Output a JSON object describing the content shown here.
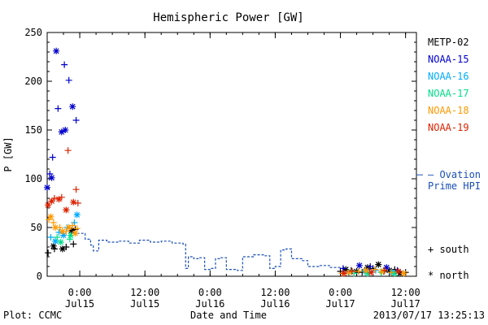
{
  "chart_data": {
    "type": "scatter",
    "title": "Hemispheric Power [GW]",
    "ylabel": "P [GW]",
    "xlabel": "Date and Time",
    "ylim": [
      0,
      250
    ],
    "xlim": [
      "2013-07-14T18:00",
      "2013-07-17T14:00"
    ],
    "y_ticks": [
      "0",
      "50",
      "100",
      "150",
      "200",
      "250"
    ],
    "x_ticks": [
      {
        "top": "0:00",
        "bottom": "Jul15",
        "t": "2013-07-15T00:00"
      },
      {
        "top": "12:00",
        "bottom": "Jul15",
        "t": "2013-07-15T12:00"
      },
      {
        "top": "0:00",
        "bottom": "Jul16",
        "t": "2013-07-16T00:00"
      },
      {
        "top": "12:00",
        "bottom": "Jul16",
        "t": "2013-07-16T12:00"
      },
      {
        "top": "0:00",
        "bottom": "Jul17",
        "t": "2013-07-17T00:00"
      },
      {
        "top": "12:00",
        "bottom": "Jul17",
        "t": "2013-07-17T12:00"
      }
    ],
    "series": [
      {
        "name": "METP-02",
        "color": "#000000",
        "south": [
          [
            "2013-07-14T18:10",
            24
          ],
          [
            "2013-07-14T19:20",
            28
          ],
          [
            "2013-07-14T21:30",
            30
          ],
          [
            "2013-07-14T22:50",
            33
          ],
          [
            "2013-07-14T23:10",
            48
          ],
          [
            "2013-07-17T00:00",
            5
          ],
          [
            "2013-07-17T02:00",
            6
          ],
          [
            "2013-07-17T04:00",
            4
          ],
          [
            "2013-07-17T06:00",
            8
          ],
          [
            "2013-07-17T08:00",
            5
          ],
          [
            "2013-07-17T10:00",
            7
          ],
          [
            "2013-07-17T12:00",
            4
          ]
        ],
        "north": [
          [
            "2013-07-14T19:10",
            31
          ],
          [
            "2013-07-14T20:50",
            28
          ],
          [
            "2013-07-14T22:30",
            47
          ],
          [
            "2013-07-17T01:00",
            7
          ],
          [
            "2013-07-17T03:00",
            5
          ],
          [
            "2013-07-17T05:00",
            9
          ],
          [
            "2013-07-17T07:00",
            12
          ],
          [
            "2013-07-17T09:00",
            6
          ],
          [
            "2013-07-17T11:00",
            3
          ]
        ]
      },
      {
        "name": "NOAA-15",
        "color": "#0000cc",
        "south": [
          [
            "2013-07-14T18:30",
            105
          ],
          [
            "2013-07-14T19:00",
            122
          ],
          [
            "2013-07-14T20:00",
            172
          ],
          [
            "2013-07-14T21:10",
            217
          ],
          [
            "2013-07-14T22:00",
            201
          ],
          [
            "2013-07-14T23:20",
            160
          ],
          [
            "2013-07-17T00:30",
            8
          ],
          [
            "2013-07-17T05:30",
            10
          ],
          [
            "2013-07-17T10:30",
            6
          ]
        ],
        "north": [
          [
            "2013-07-14T18:00",
            91
          ],
          [
            "2013-07-14T18:50",
            101
          ],
          [
            "2013-07-14T19:40",
            231
          ],
          [
            "2013-07-14T20:40",
            148
          ],
          [
            "2013-07-14T21:20",
            150
          ],
          [
            "2013-07-14T22:40",
            174
          ],
          [
            "2013-07-17T03:30",
            11
          ],
          [
            "2013-07-17T08:30",
            9
          ]
        ]
      },
      {
        "name": "NOAA-16",
        "color": "#00aaff",
        "south": [
          [
            "2013-07-14T18:40",
            40
          ],
          [
            "2013-07-14T20:10",
            45
          ],
          [
            "2013-07-14T21:40",
            50
          ],
          [
            "2013-07-14T23:00",
            55
          ],
          [
            "2013-07-17T01:30",
            4
          ],
          [
            "2013-07-17T06:30",
            6
          ]
        ],
        "north": [
          [
            "2013-07-14T19:30",
            36
          ],
          [
            "2013-07-14T21:00",
            42
          ],
          [
            "2013-07-14T23:30",
            63
          ],
          [
            "2013-07-17T04:30",
            5
          ],
          [
            "2013-07-17T09:30",
            4
          ]
        ]
      },
      {
        "name": "NOAA-17",
        "color": "#00dd88",
        "south": [
          [
            "2013-07-14T19:50",
            40
          ],
          [
            "2013-07-14T22:10",
            38
          ],
          [
            "2013-07-17T02:30",
            3
          ],
          [
            "2013-07-17T07:30",
            4
          ]
        ],
        "north": [
          [
            "2013-07-14T20:30",
            35
          ],
          [
            "2013-07-14T22:20",
            42
          ],
          [
            "2013-07-17T05:00",
            3
          ],
          [
            "2013-07-17T10:00",
            3
          ]
        ]
      },
      {
        "name": "NOAA-18",
        "color": "#ff9900",
        "south": [
          [
            "2013-07-14T18:20",
            58
          ],
          [
            "2013-07-14T19:10",
            55
          ],
          [
            "2013-07-14T20:20",
            50
          ],
          [
            "2013-07-14T21:30",
            46
          ],
          [
            "2013-07-14T22:40",
            52
          ],
          [
            "2013-07-14T23:30",
            49
          ],
          [
            "2013-07-17T00:20",
            3
          ],
          [
            "2013-07-17T03:20",
            5
          ],
          [
            "2013-07-17T06:20",
            7
          ],
          [
            "2013-07-17T09:20",
            4
          ]
        ],
        "north": [
          [
            "2013-07-14T18:40",
            61
          ],
          [
            "2013-07-14T19:30",
            50
          ],
          [
            "2013-07-14T20:50",
            46
          ],
          [
            "2013-07-14T22:00",
            50
          ],
          [
            "2013-07-14T23:10",
            44
          ],
          [
            "2013-07-17T01:40",
            4
          ],
          [
            "2013-07-17T04:40",
            6
          ],
          [
            "2013-07-17T07:40",
            5
          ],
          [
            "2013-07-17T11:40",
            3
          ]
        ]
      },
      {
        "name": "NOAA-19",
        "color": "#dd2200",
        "south": [
          [
            "2013-07-14T19:20",
            80
          ],
          [
            "2013-07-14T20:40",
            81
          ],
          [
            "2013-07-14T21:50",
            129
          ],
          [
            "2013-07-14T23:20",
            89
          ],
          [
            "2013-07-14T23:40",
            75
          ],
          [
            "2013-07-17T02:10",
            5
          ],
          [
            "2013-07-17T08:10",
            6
          ]
        ],
        "north": [
          [
            "2013-07-14T18:10",
            73
          ],
          [
            "2013-07-14T18:50",
            77
          ],
          [
            "2013-07-14T20:10",
            79
          ],
          [
            "2013-07-14T21:30",
            68
          ],
          [
            "2013-07-14T22:50",
            76
          ],
          [
            "2013-07-17T00:40",
            3
          ],
          [
            "2013-07-17T05:40",
            4
          ],
          [
            "2013-07-17T10:40",
            5
          ]
        ]
      }
    ],
    "ovation": {
      "name": "– Ovation",
      "name2": "Prime HPI",
      "color": "#1a4fb8",
      "points": [
        [
          "2013-07-14T23:30",
          44
        ],
        [
          "2013-07-15T01:00",
          38
        ],
        [
          "2013-07-15T02:00",
          32
        ],
        [
          "2013-07-15T02:30",
          26
        ],
        [
          "2013-07-15T03:30",
          37
        ],
        [
          "2013-07-15T05:00",
          35
        ],
        [
          "2013-07-15T07:00",
          36
        ],
        [
          "2013-07-15T09:00",
          34
        ],
        [
          "2013-07-15T11:00",
          37
        ],
        [
          "2013-07-15T13:00",
          35
        ],
        [
          "2013-07-15T15:00",
          36
        ],
        [
          "2013-07-15T17:00",
          34
        ],
        [
          "2013-07-15T19:00",
          33
        ],
        [
          "2013-07-15T19:30",
          8
        ],
        [
          "2013-07-15T20:00",
          20
        ],
        [
          "2013-07-15T21:00",
          18
        ],
        [
          "2013-07-15T22:00",
          19
        ],
        [
          "2013-07-15T23:00",
          7
        ],
        [
          "2013-07-16T00:00",
          8
        ],
        [
          "2013-07-16T01:00",
          18
        ],
        [
          "2013-07-16T02:00",
          19
        ],
        [
          "2013-07-16T03:00",
          7
        ],
        [
          "2013-07-16T05:00",
          6
        ],
        [
          "2013-07-16T06:00",
          20
        ],
        [
          "2013-07-16T08:00",
          22
        ],
        [
          "2013-07-16T10:00",
          21
        ],
        [
          "2013-07-16T11:00",
          8
        ],
        [
          "2013-07-16T12:00",
          10
        ],
        [
          "2013-07-16T13:00",
          27
        ],
        [
          "2013-07-16T14:00",
          28
        ],
        [
          "2013-07-16T15:00",
          18
        ],
        [
          "2013-07-16T17:00",
          16
        ],
        [
          "2013-07-16T18:00",
          10
        ],
        [
          "2013-07-16T20:00",
          11
        ],
        [
          "2013-07-16T22:00",
          9
        ],
        [
          "2013-07-17T00:00",
          7
        ]
      ]
    },
    "legend": {
      "placement": "right",
      "south": "+ south",
      "north": "* north"
    },
    "grid": false
  },
  "footer": {
    "left": "Plot: CCMC",
    "right": "2013/07/17 13:25:13"
  }
}
